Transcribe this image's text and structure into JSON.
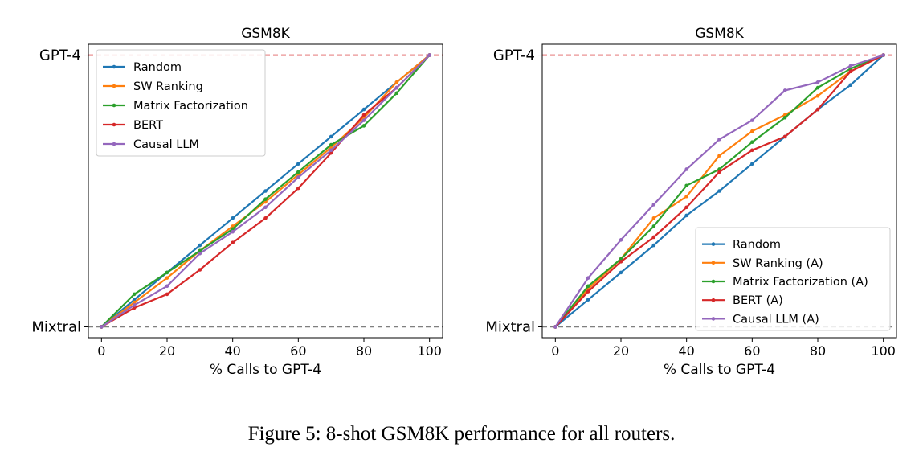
{
  "figure": {
    "caption": "Figure 5: 8-shot GSM8K performance for all routers."
  },
  "chart_data": [
    {
      "type": "line",
      "title": "GSM8K",
      "xlabel": "% Calls to GPT-4",
      "ylabel": "",
      "xlim": [
        -4,
        104
      ],
      "ylim": [
        -0.04,
        1.04
      ],
      "x_ticks": [
        0,
        20,
        40,
        60,
        80,
        100
      ],
      "y_tick_values": [
        0,
        1
      ],
      "y_tick_labels": [
        "Mixtral",
        "GPT-4"
      ],
      "reference_lines": [
        {
          "label": "GPT-4",
          "y": 1,
          "color": "#d62728",
          "style": "dashed"
        },
        {
          "label": "Mixtral",
          "y": 0,
          "color": "#7f7f7f",
          "style": "dashed"
        }
      ],
      "legend_position": "top-left",
      "grid": false,
      "x": [
        0,
        10,
        20,
        30,
        40,
        50,
        60,
        70,
        80,
        90,
        100
      ],
      "series": [
        {
          "name": "Random",
          "color": "#1f77b4",
          "values": [
            0,
            0.1,
            0.2,
            0.3,
            0.4,
            0.5,
            0.6,
            0.7,
            0.8,
            0.9,
            1
          ]
        },
        {
          "name": "SW Ranking",
          "color": "#ff7f0e",
          "values": [
            0,
            0.09,
            0.18,
            0.28,
            0.37,
            0.46,
            0.56,
            0.66,
            0.77,
            0.9,
            1
          ]
        },
        {
          "name": "Matrix Factorization",
          "color": "#2ca02c",
          "values": [
            0,
            0.12,
            0.2,
            0.28,
            0.36,
            0.47,
            0.57,
            0.67,
            0.74,
            0.86,
            1
          ]
        },
        {
          "name": "BERT",
          "color": "#d62728",
          "values": [
            0,
            0.07,
            0.12,
            0.21,
            0.31,
            0.4,
            0.51,
            0.64,
            0.78,
            0.88,
            1
          ]
        },
        {
          "name": "Causal LLM",
          "color": "#9467bd",
          "values": [
            0,
            0.08,
            0.15,
            0.27,
            0.35,
            0.44,
            0.55,
            0.65,
            0.76,
            0.88,
            1
          ]
        }
      ]
    },
    {
      "type": "line",
      "title": "GSM8K",
      "xlabel": "% Calls to GPT-4",
      "ylabel": "",
      "xlim": [
        -4,
        104
      ],
      "ylim": [
        -0.04,
        1.04
      ],
      "x_ticks": [
        0,
        20,
        40,
        60,
        80,
        100
      ],
      "y_tick_values": [
        0,
        1
      ],
      "y_tick_labels": [
        "Mixtral",
        "GPT-4"
      ],
      "reference_lines": [
        {
          "label": "GPT-4",
          "y": 1,
          "color": "#d62728",
          "style": "dashed"
        },
        {
          "label": "Mixtral",
          "y": 0,
          "color": "#7f7f7f",
          "style": "dashed"
        }
      ],
      "legend_position": "bottom-right",
      "grid": false,
      "x": [
        0,
        10,
        20,
        30,
        40,
        50,
        60,
        70,
        80,
        90,
        100
      ],
      "series": [
        {
          "name": "Random",
          "color": "#1f77b4",
          "values": [
            0,
            0.1,
            0.2,
            0.3,
            0.41,
            0.5,
            0.6,
            0.7,
            0.8,
            0.89,
            1
          ]
        },
        {
          "name": "SW Ranking (A)",
          "color": "#ff7f0e",
          "values": [
            0,
            0.14,
            0.25,
            0.4,
            0.48,
            0.63,
            0.72,
            0.78,
            0.85,
            0.94,
            1
          ]
        },
        {
          "name": "Matrix Factorization (A)",
          "color": "#2ca02c",
          "values": [
            0,
            0.15,
            0.25,
            0.37,
            0.52,
            0.58,
            0.68,
            0.77,
            0.88,
            0.95,
            1
          ]
        },
        {
          "name": "BERT (A)",
          "color": "#d62728",
          "values": [
            0,
            0.13,
            0.24,
            0.33,
            0.44,
            0.57,
            0.65,
            0.7,
            0.8,
            0.94,
            1
          ]
        },
        {
          "name": "Causal LLM (A)",
          "color": "#9467bd",
          "values": [
            0,
            0.18,
            0.32,
            0.45,
            0.58,
            0.69,
            0.76,
            0.87,
            0.9,
            0.96,
            1
          ]
        }
      ]
    }
  ]
}
